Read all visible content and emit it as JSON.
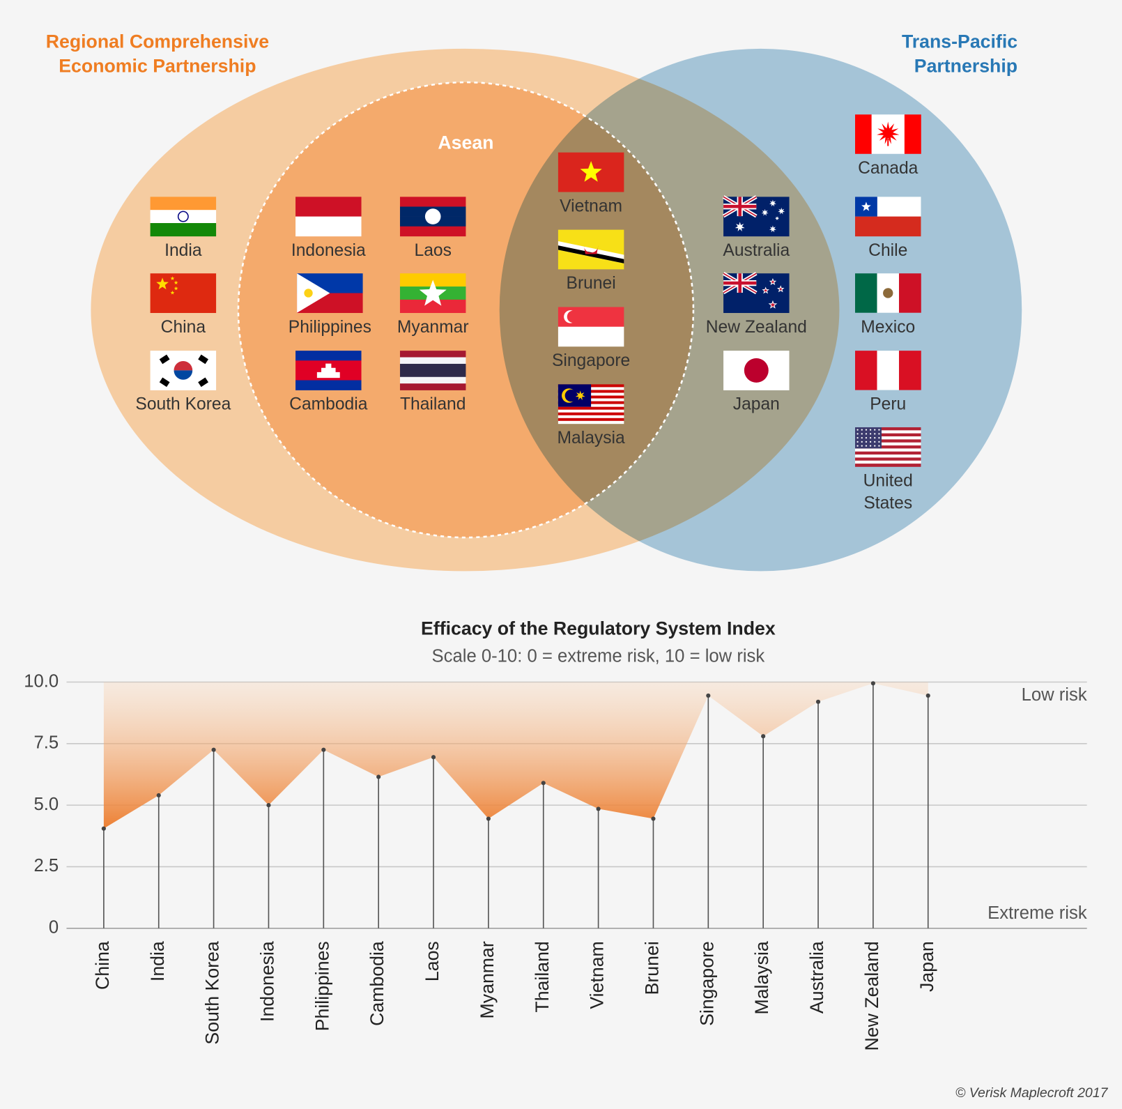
{
  "venn": {
    "rcep_title": [
      "Regional Comprehensive",
      "Economic Partnership"
    ],
    "tpp_title": [
      "Trans-Pacific",
      "Partnership"
    ],
    "asean_title": "Asean",
    "countries": [
      {
        "name": "India"
      },
      {
        "name": "China"
      },
      {
        "name": "South Korea"
      },
      {
        "name": "Indonesia"
      },
      {
        "name": "Philippines"
      },
      {
        "name": "Cambodia"
      },
      {
        "name": "Laos"
      },
      {
        "name": "Myanmar"
      },
      {
        "name": "Thailand"
      },
      {
        "name": "Vietnam"
      },
      {
        "name": "Brunei"
      },
      {
        "name": "Singapore"
      },
      {
        "name": "Malaysia"
      },
      {
        "name": "Australia"
      },
      {
        "name": "New Zealand"
      },
      {
        "name": "Japan"
      },
      {
        "name": "Canada"
      },
      {
        "name": "Chile"
      },
      {
        "name": "Mexico"
      },
      {
        "name": "Peru"
      },
      {
        "name": [
          "United",
          "States"
        ]
      }
    ]
  },
  "chart_data": {
    "type": "area",
    "title": "Efficacy of the Regulatory System Index",
    "subtitle": "Scale 0-10: 0 = extreme risk, 10 = low risk",
    "categories": [
      "China",
      "India",
      "South Korea",
      "Indonesia",
      "Philippines",
      "Cambodia",
      "Laos",
      "Myanmar",
      "Thailand",
      "Vietnam",
      "Brunei",
      "Singapore",
      "Malaysia",
      "Australia",
      "New Zealand",
      "Japan"
    ],
    "values": [
      4.05,
      5.4,
      7.25,
      5.0,
      7.25,
      6.15,
      6.95,
      4.45,
      5.9,
      4.85,
      4.45,
      9.45,
      7.8,
      9.2,
      9.95,
      9.45
    ],
    "color": "#ec7a2a",
    "ylim": [
      0,
      10
    ],
    "yticks": [
      0,
      2.5,
      {
        "value": 5,
        "label": "5.0"
      },
      7.5,
      {
        "value": 10,
        "label": "10.0"
      }
    ],
    "grid": true,
    "annotations": {
      "top": "Low risk",
      "bottom": "Extreme risk"
    }
  },
  "footer": "© Verisk Maplecroft 2017"
}
